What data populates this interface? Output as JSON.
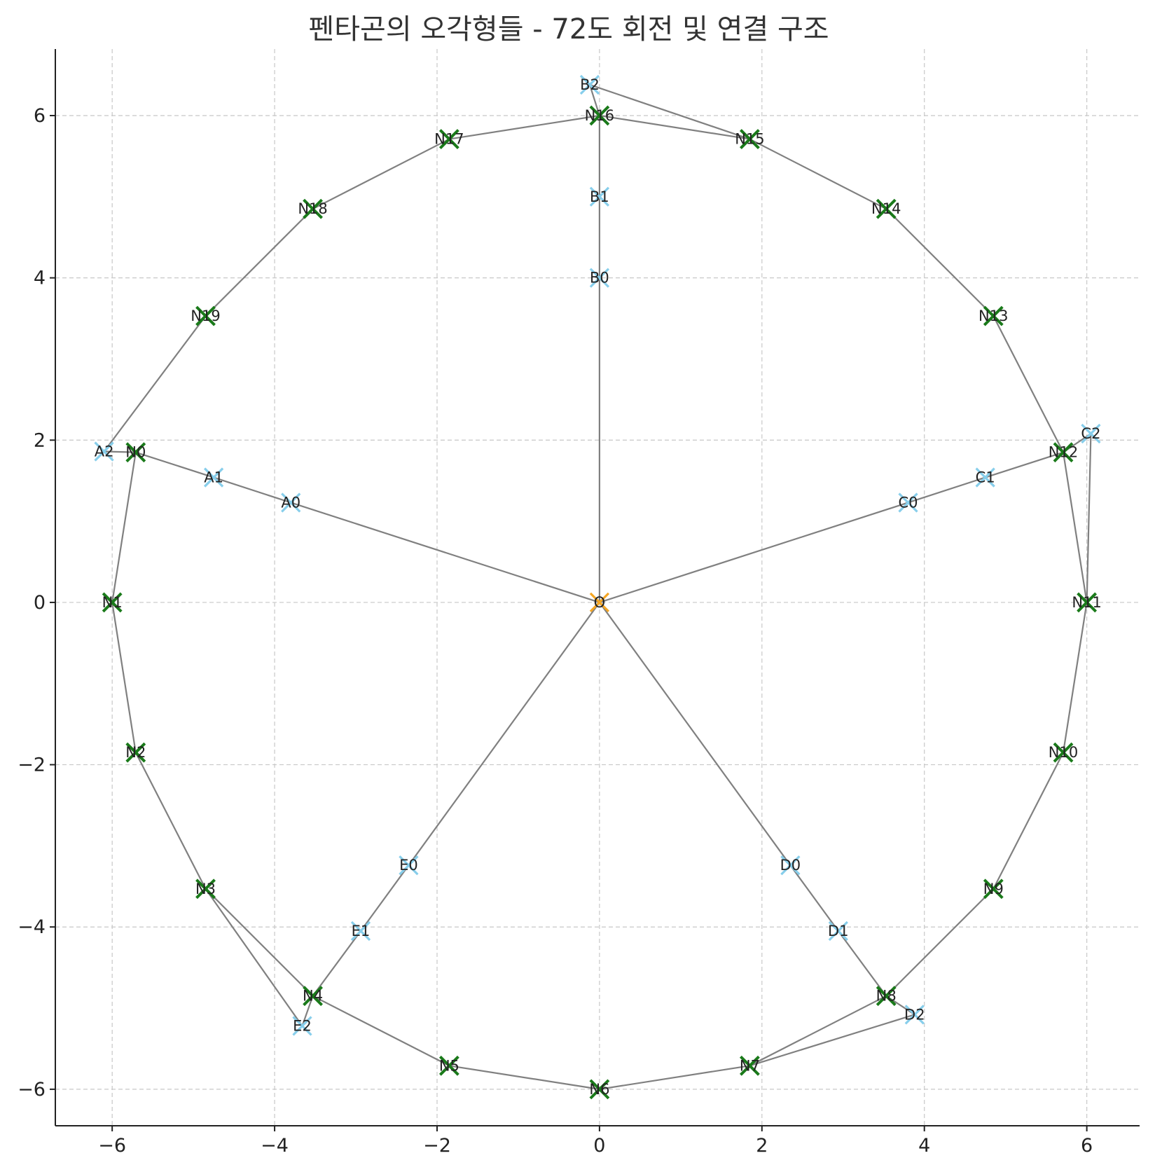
{
  "chart_data": {
    "type": "scatter",
    "title": "펜타곤의 오각형들 - 72도 회전 및 연결 구조",
    "xlabel": "",
    "ylabel": "",
    "xlim": [
      -6.7,
      6.65
    ],
    "ylim": [
      -6.45,
      6.82
    ],
    "xticks": [
      -6,
      -4,
      -2,
      0,
      2,
      4,
      6
    ],
    "yticks": [
      -6,
      -4,
      -2,
      0,
      2,
      4,
      6
    ],
    "xtick_labels": [
      "−6",
      "−4",
      "−2",
      "0",
      "2",
      "4",
      "6"
    ],
    "ytick_labels": [
      "−6",
      "−4",
      "−2",
      "0",
      "2",
      "4",
      "6"
    ],
    "grid": true,
    "colors": {
      "arm_marker": "#87ceeb",
      "ring_marker": "#1a7a1a",
      "center_marker": "#f5a623",
      "edge": "#808080"
    },
    "points": [
      {
        "label": "O",
        "x": 0.0,
        "y": 0.0,
        "group": "center"
      },
      {
        "label": "A0",
        "x": -3.8,
        "y": 1.23,
        "group": "arm"
      },
      {
        "label": "A1",
        "x": -4.75,
        "y": 1.54,
        "group": "arm"
      },
      {
        "label": "A2",
        "x": -6.1,
        "y": 1.86,
        "group": "arm"
      },
      {
        "label": "B0",
        "x": 0.0,
        "y": 4.0,
        "group": "arm"
      },
      {
        "label": "B1",
        "x": 0.0,
        "y": 5.0,
        "group": "arm"
      },
      {
        "label": "B2",
        "x": -0.12,
        "y": 6.38,
        "group": "arm"
      },
      {
        "label": "C0",
        "x": 3.8,
        "y": 1.23,
        "group": "arm"
      },
      {
        "label": "C1",
        "x": 4.75,
        "y": 1.54,
        "group": "arm"
      },
      {
        "label": "C2",
        "x": 6.05,
        "y": 2.08,
        "group": "arm"
      },
      {
        "label": "D0",
        "x": 2.35,
        "y": -3.24,
        "group": "arm"
      },
      {
        "label": "D1",
        "x": 2.94,
        "y": -4.05,
        "group": "arm"
      },
      {
        "label": "D2",
        "x": 3.88,
        "y": -5.08,
        "group": "arm"
      },
      {
        "label": "E0",
        "x": -2.35,
        "y": -3.24,
        "group": "arm"
      },
      {
        "label": "E1",
        "x": -2.94,
        "y": -4.05,
        "group": "arm"
      },
      {
        "label": "E2",
        "x": -3.66,
        "y": -5.22,
        "group": "arm"
      },
      {
        "label": "N0",
        "x": -5.71,
        "y": 1.85,
        "group": "ring"
      },
      {
        "label": "N1",
        "x": -6.0,
        "y": 0.0,
        "group": "ring"
      },
      {
        "label": "N2",
        "x": -5.71,
        "y": -1.85,
        "group": "ring"
      },
      {
        "label": "N3",
        "x": -4.85,
        "y": -3.53,
        "group": "ring"
      },
      {
        "label": "N4",
        "x": -3.53,
        "y": -4.85,
        "group": "ring"
      },
      {
        "label": "N5",
        "x": -1.85,
        "y": -5.71,
        "group": "ring"
      },
      {
        "label": "N6",
        "x": 0.0,
        "y": -6.0,
        "group": "ring"
      },
      {
        "label": "N7",
        "x": 1.85,
        "y": -5.71,
        "group": "ring"
      },
      {
        "label": "N8",
        "x": 3.53,
        "y": -4.85,
        "group": "ring"
      },
      {
        "label": "N9",
        "x": 4.85,
        "y": -3.53,
        "group": "ring"
      },
      {
        "label": "N10",
        "x": 5.71,
        "y": -1.85,
        "group": "ring"
      },
      {
        "label": "N11",
        "x": 6.0,
        "y": 0.0,
        "group": "ring"
      },
      {
        "label": "N12",
        "x": 5.71,
        "y": 1.85,
        "group": "ring"
      },
      {
        "label": "N13",
        "x": 4.85,
        "y": 3.53,
        "group": "ring"
      },
      {
        "label": "N14",
        "x": 3.53,
        "y": 4.85,
        "group": "ring"
      },
      {
        "label": "N15",
        "x": 1.85,
        "y": 5.71,
        "group": "ring"
      },
      {
        "label": "N16",
        "x": 0.0,
        "y": 6.0,
        "group": "ring"
      },
      {
        "label": "N17",
        "x": -1.85,
        "y": 5.71,
        "group": "ring"
      },
      {
        "label": "N18",
        "x": -3.53,
        "y": 4.85,
        "group": "ring"
      },
      {
        "label": "N19",
        "x": -4.85,
        "y": 3.53,
        "group": "ring"
      }
    ],
    "edges": [
      [
        "O",
        "A0"
      ],
      [
        "A0",
        "A1"
      ],
      [
        "A1",
        "N0"
      ],
      [
        "N0",
        "A2"
      ],
      [
        "A2",
        "N19"
      ],
      [
        "N0",
        "N1"
      ],
      [
        "O",
        "B0"
      ],
      [
        "B0",
        "B1"
      ],
      [
        "B1",
        "N16"
      ],
      [
        "N16",
        "B2"
      ],
      [
        "B2",
        "N15"
      ],
      [
        "O",
        "C0"
      ],
      [
        "C0",
        "C1"
      ],
      [
        "C1",
        "N12"
      ],
      [
        "N12",
        "C2"
      ],
      [
        "C2",
        "N11"
      ],
      [
        "O",
        "D0"
      ],
      [
        "D0",
        "D1"
      ],
      [
        "D1",
        "N8"
      ],
      [
        "N8",
        "D2"
      ],
      [
        "D2",
        "N7"
      ],
      [
        "O",
        "E0"
      ],
      [
        "E0",
        "E1"
      ],
      [
        "E1",
        "N4"
      ],
      [
        "N4",
        "E2"
      ],
      [
        "E2",
        "N3"
      ],
      [
        "N1",
        "N2"
      ],
      [
        "N2",
        "N3"
      ],
      [
        "N3",
        "N4"
      ],
      [
        "N4",
        "N5"
      ],
      [
        "N5",
        "N6"
      ],
      [
        "N6",
        "N7"
      ],
      [
        "N7",
        "N8"
      ],
      [
        "N8",
        "N9"
      ],
      [
        "N9",
        "N10"
      ],
      [
        "N10",
        "N11"
      ],
      [
        "N11",
        "N12"
      ],
      [
        "N12",
        "N13"
      ],
      [
        "N13",
        "N14"
      ],
      [
        "N14",
        "N15"
      ],
      [
        "N15",
        "N16"
      ],
      [
        "N16",
        "N17"
      ],
      [
        "N17",
        "N18"
      ],
      [
        "N18",
        "N19"
      ]
    ]
  }
}
